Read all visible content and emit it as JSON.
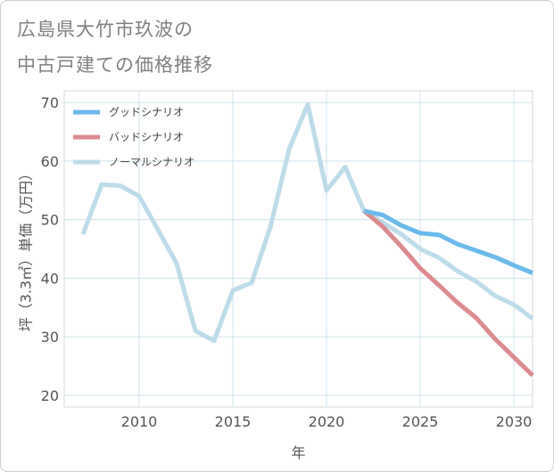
{
  "title_lines": [
    "広島県大竹市玖波の",
    "中古戸建ての価格推移"
  ],
  "chart_data": {
    "type": "line",
    "xlabel": "年",
    "ylabel": "坪（3.3㎡）単価（万円）",
    "xlim": [
      2006,
      2031
    ],
    "ylim": [
      18,
      72
    ],
    "xticks": [
      2010,
      2015,
      2020,
      2025,
      2030
    ],
    "yticks": [
      20,
      30,
      40,
      50,
      60,
      70
    ],
    "grid": true,
    "legend_position": "top-left",
    "series": [
      {
        "name": "グッドシナリオ",
        "color": "#6ab9ec",
        "x": [
          2022,
          2023,
          2024,
          2025,
          2026,
          2027,
          2028,
          2029,
          2030,
          2031
        ],
        "values": [
          51.5,
          50.8,
          49.0,
          47.7,
          47.4,
          45.8,
          44.7,
          43.6,
          42.2,
          40.9
        ]
      },
      {
        "name": "バッドシナリオ",
        "color": "#dc8a8e",
        "x": [
          2022,
          2023,
          2024,
          2025,
          2026,
          2027,
          2028,
          2029,
          2030,
          2031
        ],
        "values": [
          51.5,
          48.8,
          45.4,
          41.7,
          38.8,
          35.8,
          33.2,
          29.6,
          26.5,
          23.4
        ]
      },
      {
        "name": "ノーマルシナリオ",
        "color": "#bddcea",
        "x": [
          2007,
          2008,
          2009,
          2010,
          2011,
          2012,
          2013,
          2014,
          2015,
          2016,
          2017,
          2018,
          2019,
          2020,
          2021,
          2022,
          2023,
          2024,
          2025,
          2026,
          2027,
          2028,
          2029,
          2030,
          2031
        ],
        "values": [
          47.5,
          56.0,
          55.8,
          54.0,
          48.3,
          42.5,
          31.0,
          29.3,
          37.9,
          39.2,
          48.7,
          62.0,
          69.7,
          55.0,
          59.0,
          51.5,
          49.5,
          47.5,
          45.0,
          43.5,
          41.2,
          39.4,
          37.0,
          35.5,
          33.1
        ]
      }
    ]
  }
}
